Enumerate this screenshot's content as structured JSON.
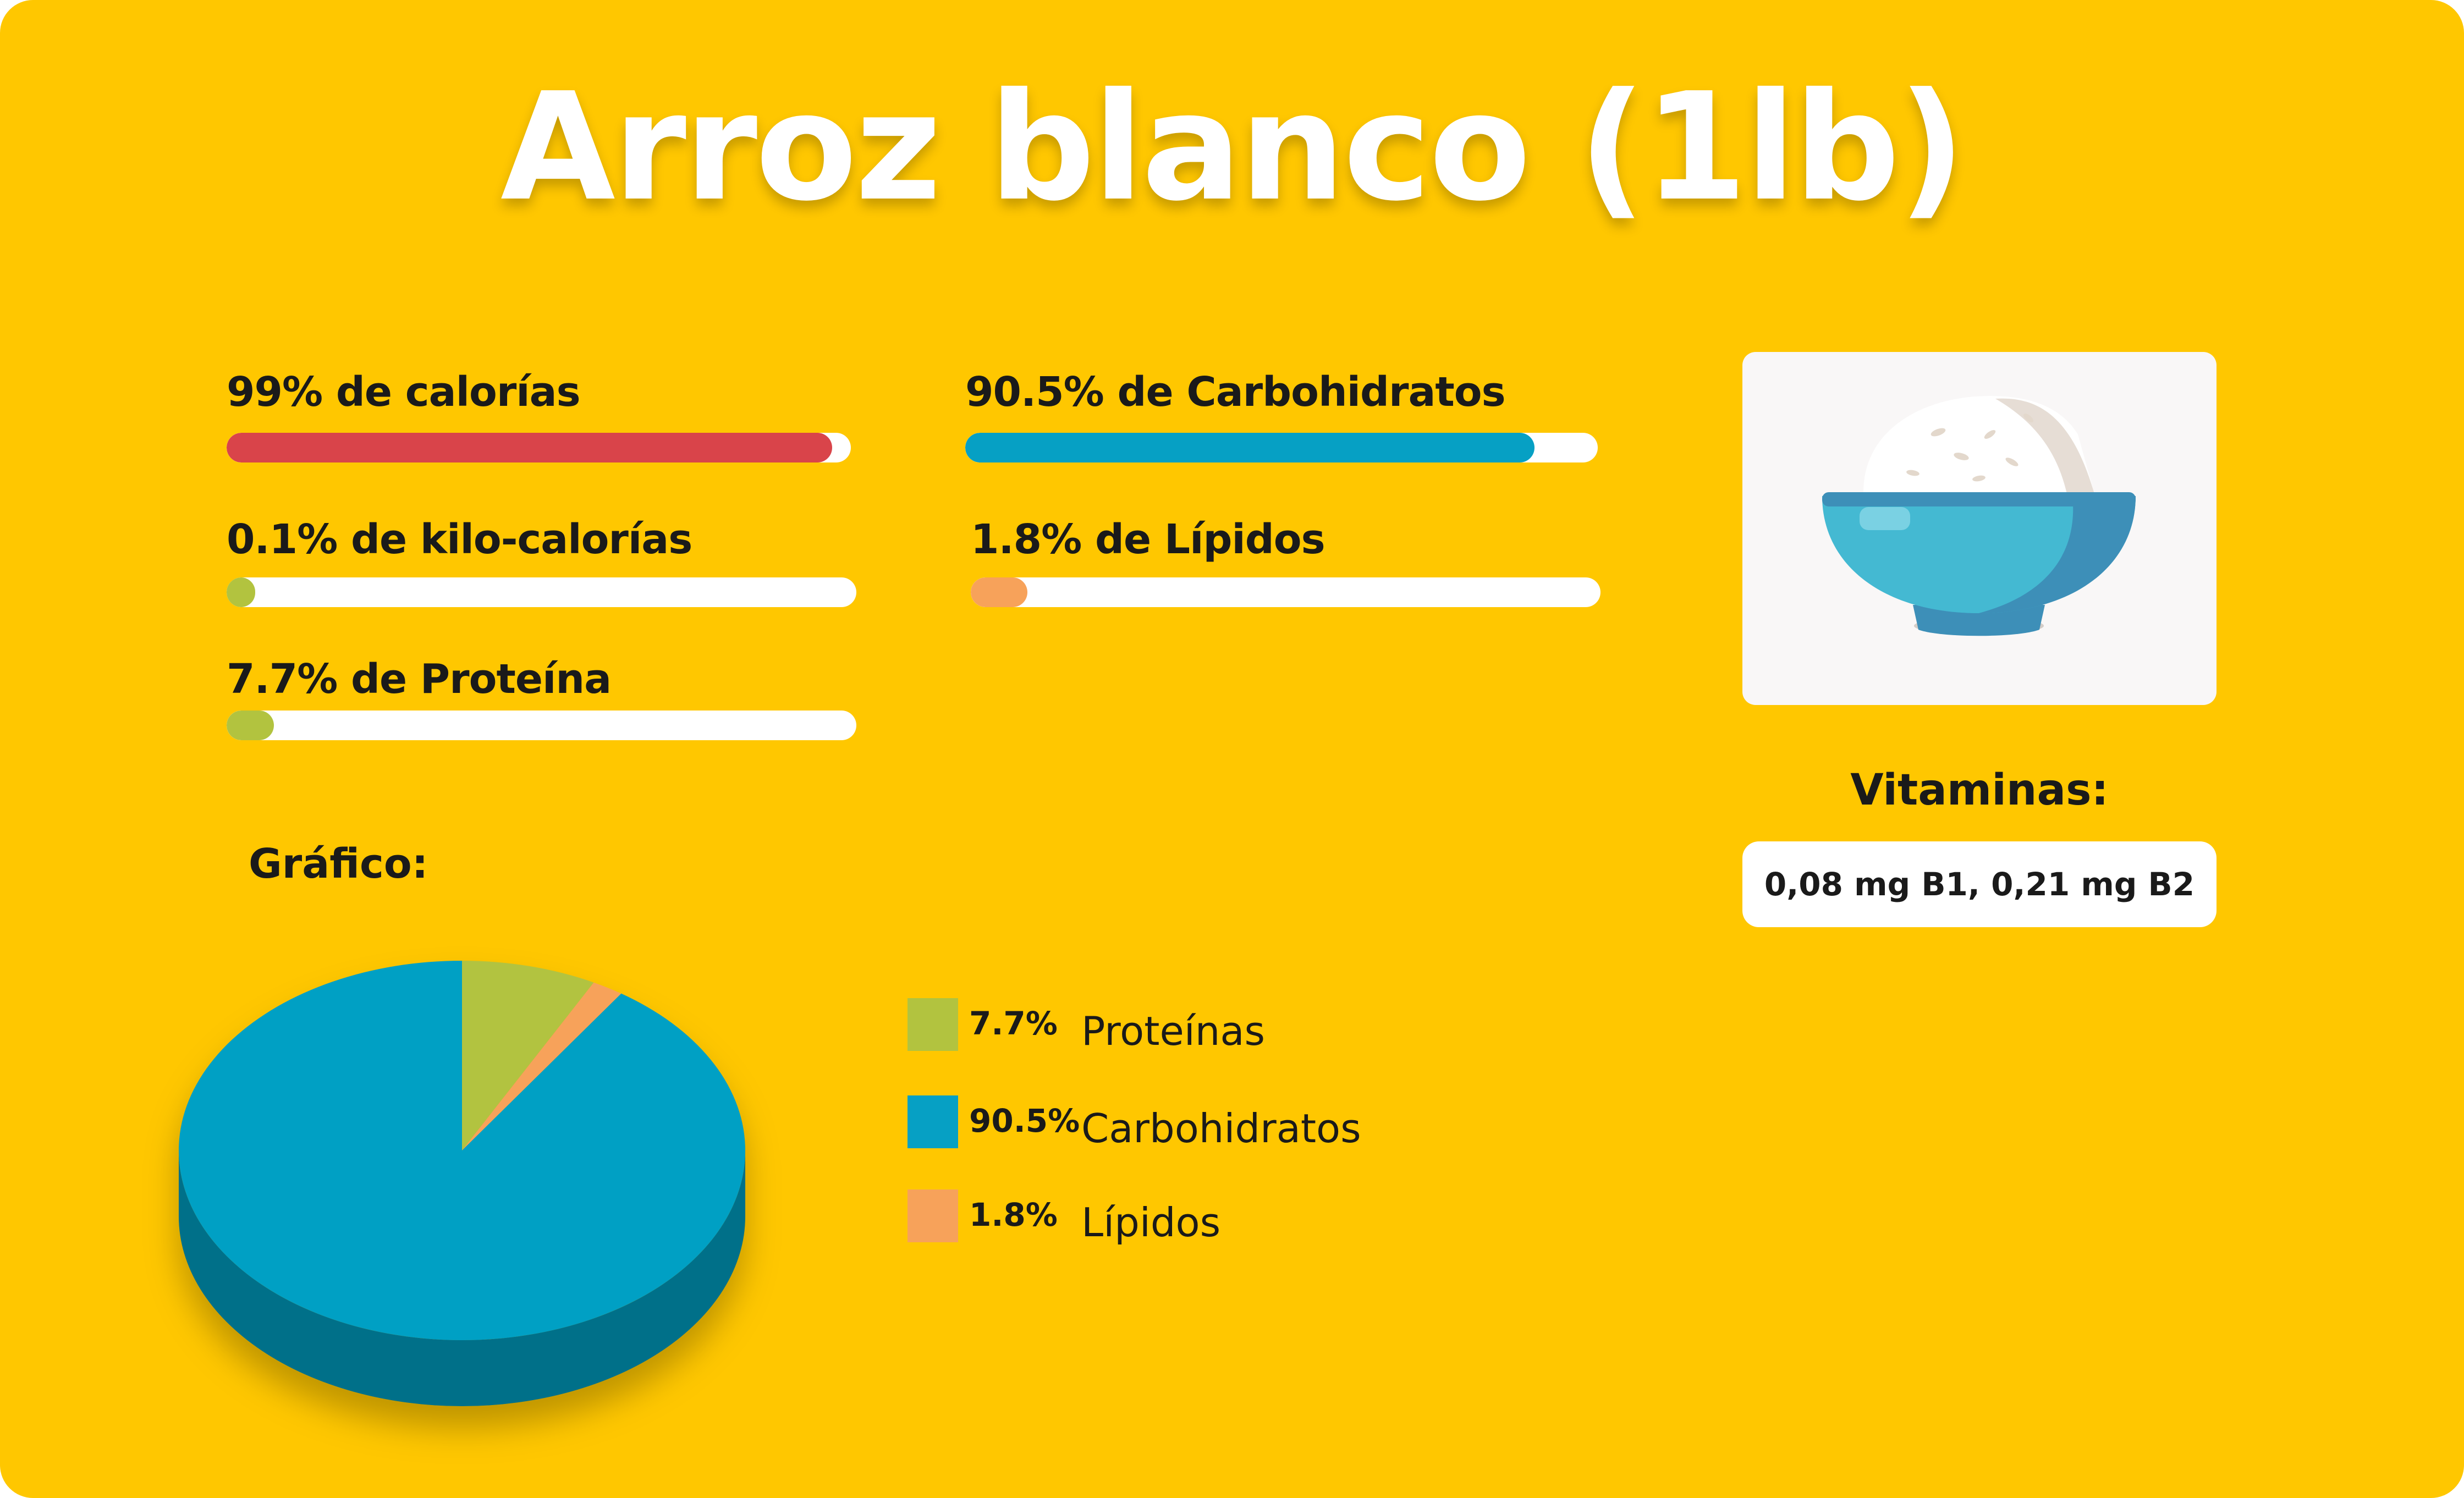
{
  "title": "Arroz blanco (1lb)",
  "metrics": [
    {
      "label": "99% de calorías",
      "value": 0.97,
      "color": "#D9444A"
    },
    {
      "label": "90.5% de Carbohidratos",
      "value": 0.9,
      "color": "#06A0C4"
    },
    {
      "label": "0.1% de kilo-calorías",
      "value": 0.045,
      "color": "#B2C33F"
    },
    {
      "label": "1.8% de Lípidos",
      "value": 0.09,
      "color": "#F7A25A"
    },
    {
      "label": "7.7% de Proteína",
      "value": 0.075,
      "color": "#B2C33F"
    }
  ],
  "image": {
    "icon": "rice-bowl-icon"
  },
  "vitamins": {
    "title": "Vitaminas:",
    "text": "0,08 mg B1, 0,21 mg B2"
  },
  "chart_section_title": "Gráfico:",
  "chart_data": {
    "type": "pie",
    "title": "Gráfico:",
    "style": "3d",
    "slices": [
      {
        "label": "Proteínas",
        "value": 7.7,
        "display": "7.7%",
        "color": "#B2C33F"
      },
      {
        "label": "Lípidos",
        "value": 1.8,
        "display": "1.8%",
        "color": "#F7A25A"
      },
      {
        "label": "Carbohidratos",
        "value": 90.5,
        "display": "90.5%",
        "color": "#06A0C4"
      }
    ],
    "legend": [
      {
        "value": "7.7%",
        "name": "Proteínas",
        "color": "#B2C33F"
      },
      {
        "value": "90.5%",
        "name": "Carbohidratos",
        "color": "#06A0C4"
      },
      {
        "value": "1.8%",
        "name": "Lípidos",
        "color": "#F7A25A"
      }
    ],
    "legend_position": "right"
  }
}
